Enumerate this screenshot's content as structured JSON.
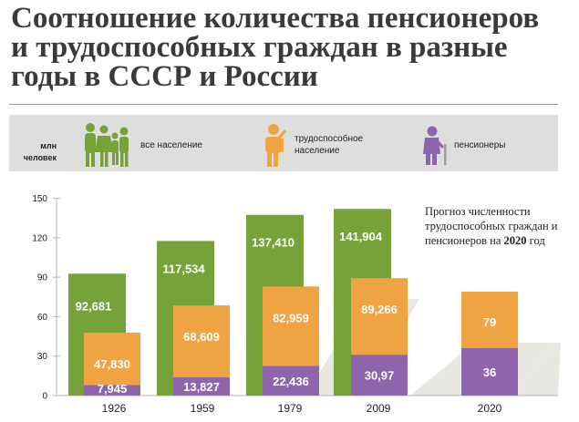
{
  "title": "Соотношение количества пенсионеров и трудоспособных граждан в разные годы в СССР и России",
  "unit_label": {
    "line1": "млн",
    "line2": "человек"
  },
  "legend": [
    {
      "label": "все население",
      "icon": "family-icon",
      "color": "#75a33a"
    },
    {
      "label_line1": "трудоспособное",
      "label_line2": "население",
      "icon": "worker-icon",
      "color": "#f0a342"
    },
    {
      "label": "пенсионеры",
      "icon": "elderly-icon",
      "color": "#8e64ad"
    }
  ],
  "note": {
    "text": "Прогноз численности трудоспособных граждан и пенсионеров на",
    "year": "2020",
    "suffix": "год"
  },
  "colors": {
    "total": "#75a33a",
    "working": "#f0a342",
    "pensioners": "#8e64ad",
    "shadow": "#e8e7e1"
  },
  "chart_data": {
    "type": "bar",
    "categories": [
      "1926",
      "1959",
      "1979",
      "2009",
      "2020"
    ],
    "ylim": [
      0,
      150
    ],
    "yticks": [
      0,
      30,
      60,
      90,
      120,
      150
    ],
    "series": [
      {
        "name": "все население",
        "values": [
          92.681,
          117.534,
          137.41,
          141.904,
          null
        ],
        "labels": [
          "92,681",
          "117,534",
          "137,410",
          "141,904",
          ""
        ]
      },
      {
        "name": "трудоспособное население",
        "values": [
          47.83,
          68.609,
          82.959,
          89.266,
          79
        ],
        "labels": [
          "47,830",
          "68,609",
          "82,959",
          "89,266",
          "79"
        ]
      },
      {
        "name": "пенсионеры",
        "values": [
          7.945,
          13.827,
          22.436,
          30.97,
          36
        ],
        "labels": [
          "7,945",
          "13,827",
          "22,436",
          "30,97",
          "36"
        ]
      }
    ]
  }
}
